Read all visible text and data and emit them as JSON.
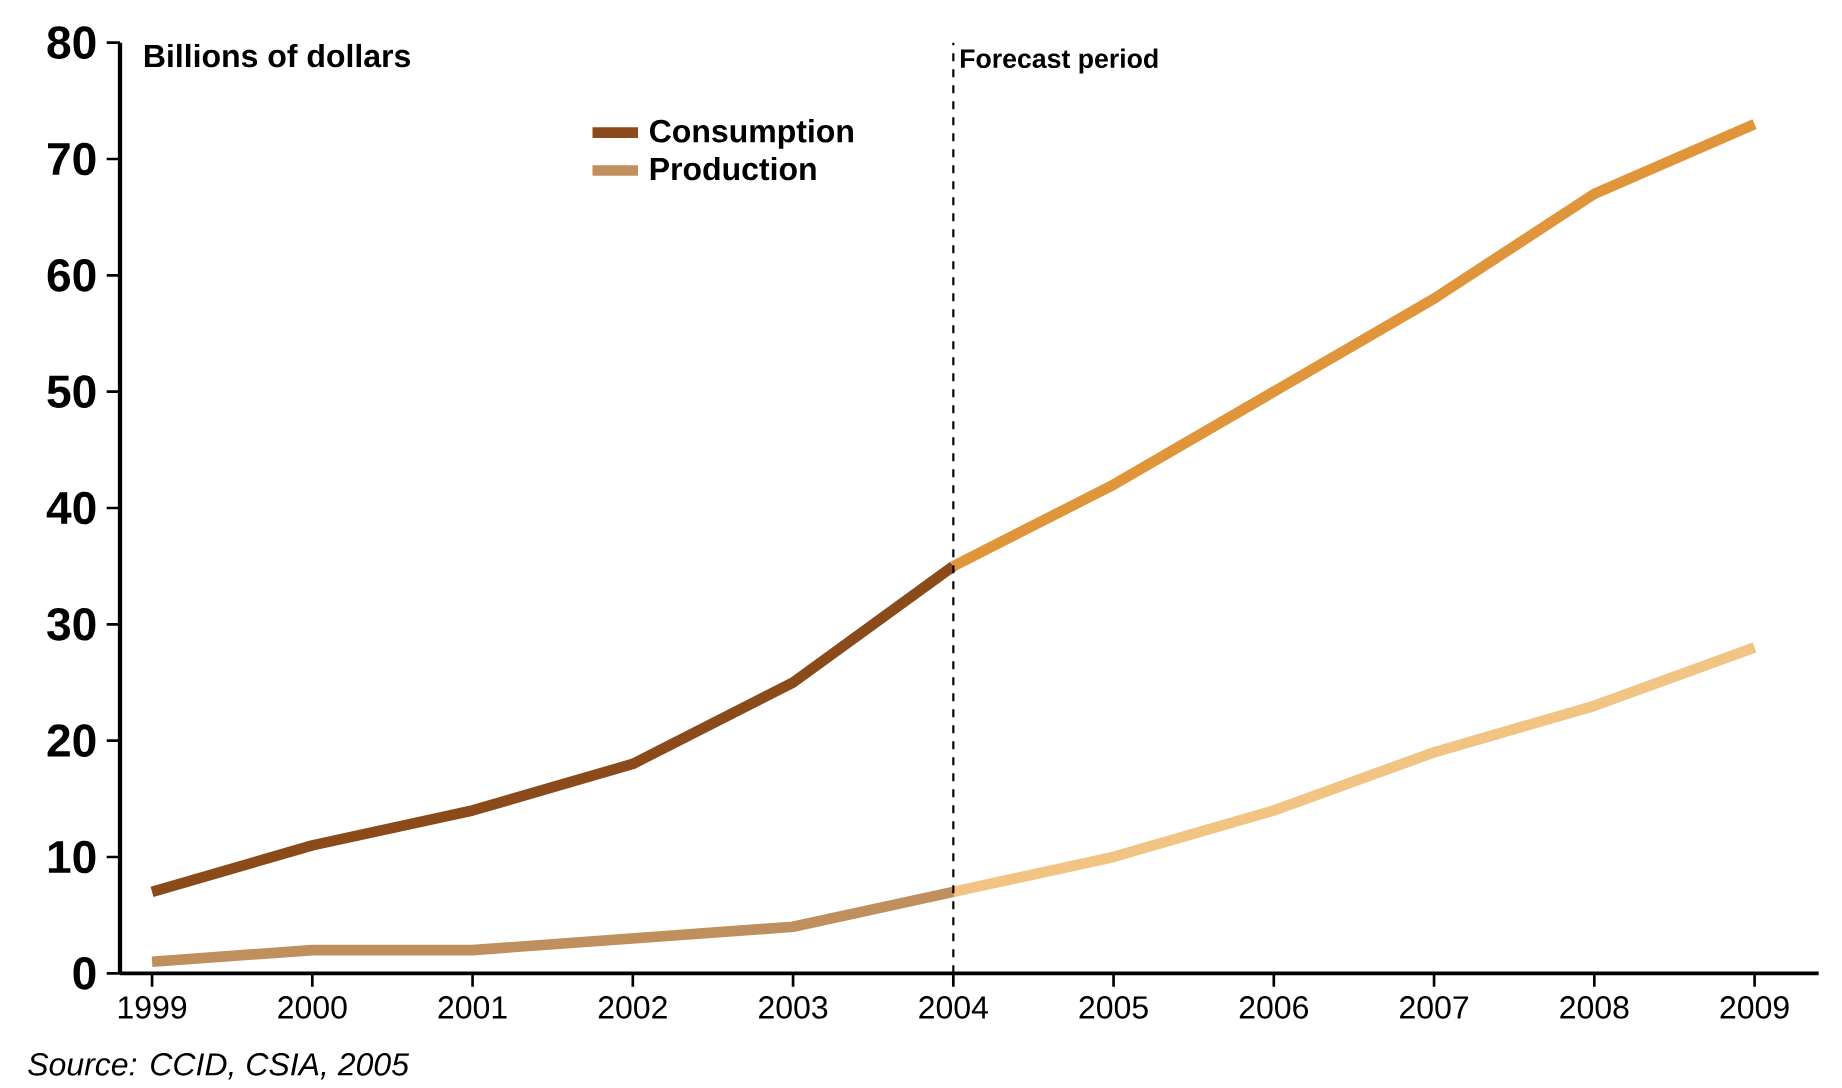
{
  "chart_data": {
    "type": "line",
    "ylabel": "Billions of dollars",
    "annotations": [
      "Source: CCID, CSIA, 2005"
    ],
    "series": [
      {
        "name": "Consumption",
        "color": "#8b4a1a",
        "x": [
          1999,
          2000,
          2001,
          2002,
          2003,
          2004
        ],
        "values": [
          7,
          11,
          14,
          18,
          25,
          35
        ]
      },
      {
        "color": "#e0953a",
        "x": [
          2004,
          2005,
          2006,
          2007,
          2008,
          2009
        ],
        "values": [
          35,
          42,
          50,
          58,
          67,
          73
        ]
      },
      {
        "name": "Production",
        "color": "#bf8f5e",
        "x": [
          1999,
          2000,
          2001,
          2002,
          2003,
          2004
        ],
        "values": [
          1,
          2,
          2,
          3,
          4,
          7
        ]
      },
      {
        "color": "#f2c484",
        "x": [
          2004,
          2005,
          2006,
          2007,
          2008,
          2009
        ],
        "values": [
          7,
          10,
          14,
          19,
          23,
          28
        ]
      }
    ],
    "xlim": [
      1998.8,
      2009.4
    ],
    "xticks": [
      1999,
      2000,
      2001,
      2002,
      2003,
      2004,
      2005,
      2006,
      2007,
      2008,
      2009
    ],
    "ylim": [
      0,
      80
    ],
    "yticks": [
      0,
      10,
      20,
      30,
      40,
      50,
      60,
      70,
      80
    ],
    "ref_lines": [
      {
        "axis": "x",
        "value": 2004,
        "label": "Forecast period",
        "line_style": "dashed"
      }
    ],
    "grid": false,
    "legend": "top left",
    "marker": "none",
    "line_style": "solid"
  }
}
